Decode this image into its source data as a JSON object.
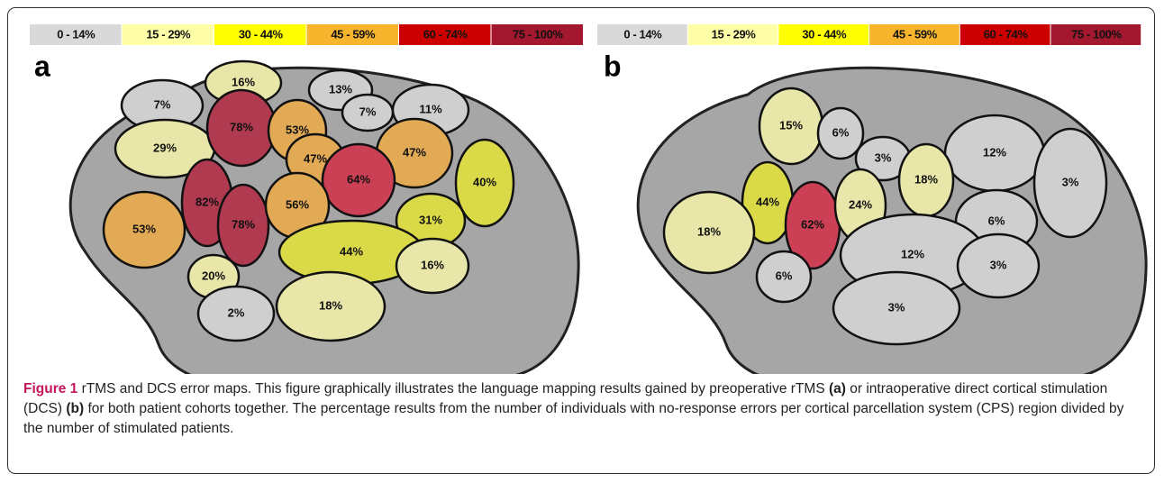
{
  "panels": [
    {
      "letter": "a",
      "legend": [
        {
          "label": "0 - 14%",
          "color": "#d9d9d9"
        },
        {
          "label": "15 - 29%",
          "color": "#ffffa8"
        },
        {
          "label": "30 - 44%",
          "color": "#ffff00"
        },
        {
          "label": "45 - 59%",
          "color": "#f7b52e"
        },
        {
          "label": "60 - 74%",
          "color": "#cc0000"
        },
        {
          "label": "75 - 100%",
          "color": "#a3182f"
        }
      ],
      "regions": [
        {
          "label": "7%",
          "color": "#cfcfcf"
        },
        {
          "label": "16%",
          "color": "#e8e6a8"
        },
        {
          "label": "13%",
          "color": "#cfcfcf"
        },
        {
          "label": "7%",
          "color": "#cfcfcf"
        },
        {
          "label": "11%",
          "color": "#cfcfcf"
        },
        {
          "label": "29%",
          "color": "#e8e6a8"
        },
        {
          "label": "78%",
          "color": "#b03a50"
        },
        {
          "label": "53%",
          "color": "#e2aa55"
        },
        {
          "label": "47%",
          "color": "#e2aa55"
        },
        {
          "label": "47%",
          "color": "#e2aa55"
        },
        {
          "label": "64%",
          "color": "#cc4055"
        },
        {
          "label": "40%",
          "color": "#dada48"
        },
        {
          "label": "82%",
          "color": "#b03a50"
        },
        {
          "label": "78%",
          "color": "#b03a50"
        },
        {
          "label": "56%",
          "color": "#e2aa55"
        },
        {
          "label": "31%",
          "color": "#dada48"
        },
        {
          "label": "53%",
          "color": "#e2aa55"
        },
        {
          "label": "44%",
          "color": "#dada48"
        },
        {
          "label": "20%",
          "color": "#e8e6a8"
        },
        {
          "label": "16%",
          "color": "#e8e6a8"
        },
        {
          "label": "2%",
          "color": "#cfcfcf"
        },
        {
          "label": "18%",
          "color": "#e8e6a8"
        }
      ]
    },
    {
      "letter": "b",
      "legend": [
        {
          "label": "0 - 14%",
          "color": "#d9d9d9"
        },
        {
          "label": "15 - 29%",
          "color": "#ffffa8"
        },
        {
          "label": "30 - 44%",
          "color": "#ffff00"
        },
        {
          "label": "45 - 59%",
          "color": "#f7b52e"
        },
        {
          "label": "60 - 74%",
          "color": "#cc0000"
        },
        {
          "label": "75 - 100%",
          "color": "#a3182f"
        }
      ],
      "regions": [
        {
          "label": "15%",
          "color": "#e8e6a8"
        },
        {
          "label": "6%",
          "color": "#cfcfcf"
        },
        {
          "label": "3%",
          "color": "#cfcfcf"
        },
        {
          "label": "12%",
          "color": "#cfcfcf"
        },
        {
          "label": "18%",
          "color": "#e8e6a8"
        },
        {
          "label": "3%",
          "color": "#cfcfcf"
        },
        {
          "label": "44%",
          "color": "#dada48"
        },
        {
          "label": "62%",
          "color": "#cc4055"
        },
        {
          "label": "24%",
          "color": "#e8e6a8"
        },
        {
          "label": "18%",
          "color": "#e8e6a8"
        },
        {
          "label": "6%",
          "color": "#cfcfcf"
        },
        {
          "label": "12%",
          "color": "#cfcfcf"
        },
        {
          "label": "6%",
          "color": "#cfcfcf"
        },
        {
          "label": "3%",
          "color": "#cfcfcf"
        },
        {
          "label": "3%",
          "color": "#cfcfcf"
        }
      ]
    }
  ],
  "caption": {
    "label": "Figure 1",
    "part1": "rTMS and DCS error maps. This figure graphically illustrates the language mapping results gained by preoperative rTMS",
    "ref_a": "(a)",
    "part2": "or intraoperative direct cortical stimulation (DCS)",
    "ref_b": "(b)",
    "part3": "for both patient cohorts together. The percentage results from the number of individuals with no-response errors per cortical parcellation system (CPS) region divided by the number of stimulated patients."
  }
}
